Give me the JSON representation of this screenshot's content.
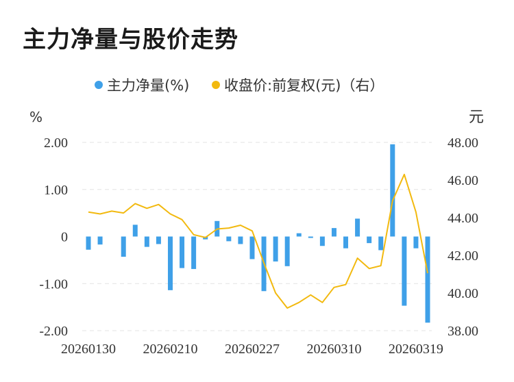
{
  "title": "主力净量与股价走势",
  "legend": {
    "series1": "主力净量(%)",
    "series2": "收盘价:前复权(元)（右）"
  },
  "left_unit": "%",
  "right_unit": "元",
  "chart_data": {
    "type": "bar+line",
    "title": "主力净量与股价走势",
    "x_tick_labels": [
      "20260130",
      "20260210",
      "20260227",
      "20260310",
      "20260319"
    ],
    "x_tick_index": [
      0,
      7,
      14,
      21,
      28
    ],
    "left_axis": {
      "unit": "%",
      "ylim": [
        -2,
        2
      ],
      "ticks": [
        "2.00",
        "1.00",
        "0",
        "-1.00",
        "-2.00"
      ]
    },
    "right_axis": {
      "unit": "元",
      "ylim": [
        38,
        48
      ],
      "ticks": [
        "48.00",
        "46.00",
        "44.00",
        "42.00",
        "40.00",
        "38.00"
      ]
    },
    "grid": "horizontal dashed",
    "legend_position": "top-center",
    "colors": {
      "bar": "#3fa0e8",
      "line": "#f2b90f"
    },
    "series": [
      {
        "name": "主力净量(%)",
        "type": "bar",
        "axis": "left",
        "values": [
          -0.28,
          -0.17,
          0.0,
          -0.43,
          0.25,
          -0.22,
          -0.16,
          -1.14,
          -0.67,
          -0.69,
          -0.06,
          0.33,
          -0.1,
          -0.16,
          -0.48,
          -1.16,
          -0.53,
          -0.63,
          0.07,
          -0.03,
          -0.2,
          0.18,
          -0.25,
          0.38,
          -0.14,
          -0.29,
          1.96,
          -1.47,
          -0.25,
          -1.83
        ]
      },
      {
        "name": "收盘价:前复权(元)（右）",
        "type": "line",
        "axis": "right",
        "values": [
          44.3,
          44.2,
          44.35,
          44.25,
          44.75,
          44.5,
          44.7,
          44.2,
          43.9,
          43.1,
          42.95,
          43.4,
          43.45,
          43.6,
          43.3,
          41.6,
          40.0,
          39.2,
          39.5,
          39.9,
          39.5,
          40.3,
          40.45,
          41.85,
          41.3,
          41.45,
          44.9,
          46.3,
          44.3,
          41.05
        ]
      }
    ]
  }
}
